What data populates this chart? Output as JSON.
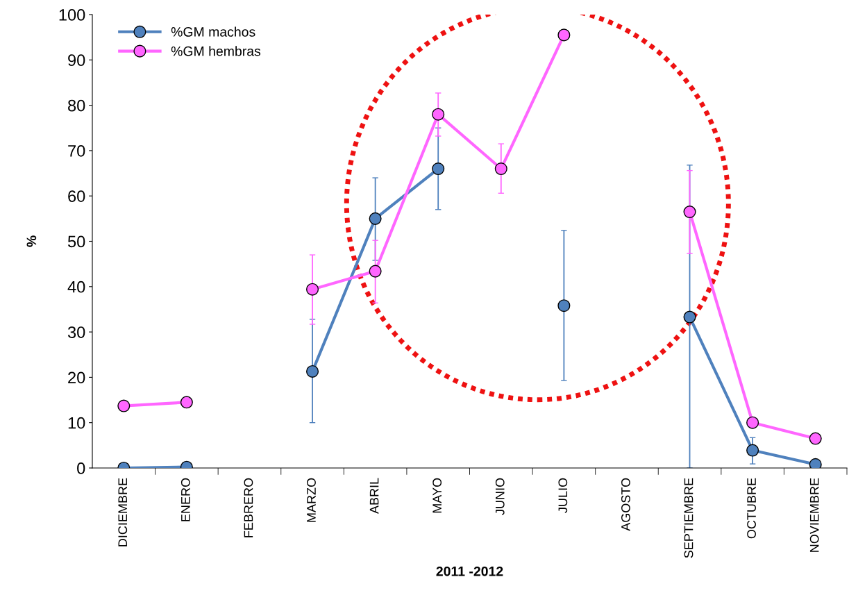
{
  "chart_data": {
    "type": "line",
    "xlabel": "2011 -2012",
    "ylabel": "%",
    "categories": [
      "DICIEMBRE",
      "ENERO",
      "FEBRERO",
      "MARZO",
      "ABRIL",
      "MAYO",
      "JUNIO",
      "JULIO",
      "AGOSTO",
      "SEPTIEMBRE",
      "OCTUBRE",
      "NOVIEMBRE"
    ],
    "series": [
      {
        "name": "%GM machos",
        "color": "#4f81bd",
        "values": [
          0,
          0.2,
          null,
          21.3,
          55,
          66,
          null,
          35.8,
          null,
          33.3,
          3.9,
          0.8
        ],
        "errors": [
          null,
          null,
          null,
          [
            10,
            32.8
          ],
          [
            45.8,
            64
          ],
          [
            57,
            75
          ],
          null,
          [
            19.3,
            52.4
          ],
          null,
          [
            0,
            66.8
          ],
          [
            0.9,
            6.7
          ],
          null
        ]
      },
      {
        "name": "%GM hembras",
        "color": "#ff66ff",
        "values": [
          13.7,
          14.5,
          null,
          39.4,
          43.4,
          78,
          66,
          95.5,
          null,
          56.5,
          10,
          6.5
        ],
        "errors": [
          null,
          null,
          null,
          [
            31.7,
            47
          ],
          [
            36.4,
            50.2
          ],
          [
            73.2,
            82.7
          ],
          [
            60.6,
            71.5
          ],
          null,
          null,
          [
            47.3,
            65.6
          ],
          null,
          null
        ]
      }
    ],
    "ylim": [
      0,
      100
    ],
    "yticks": [
      0,
      10,
      20,
      30,
      40,
      50,
      60,
      70,
      80,
      90,
      100
    ],
    "grid": false,
    "legend": "top left",
    "marker": "circle",
    "line_style": "solid"
  }
}
